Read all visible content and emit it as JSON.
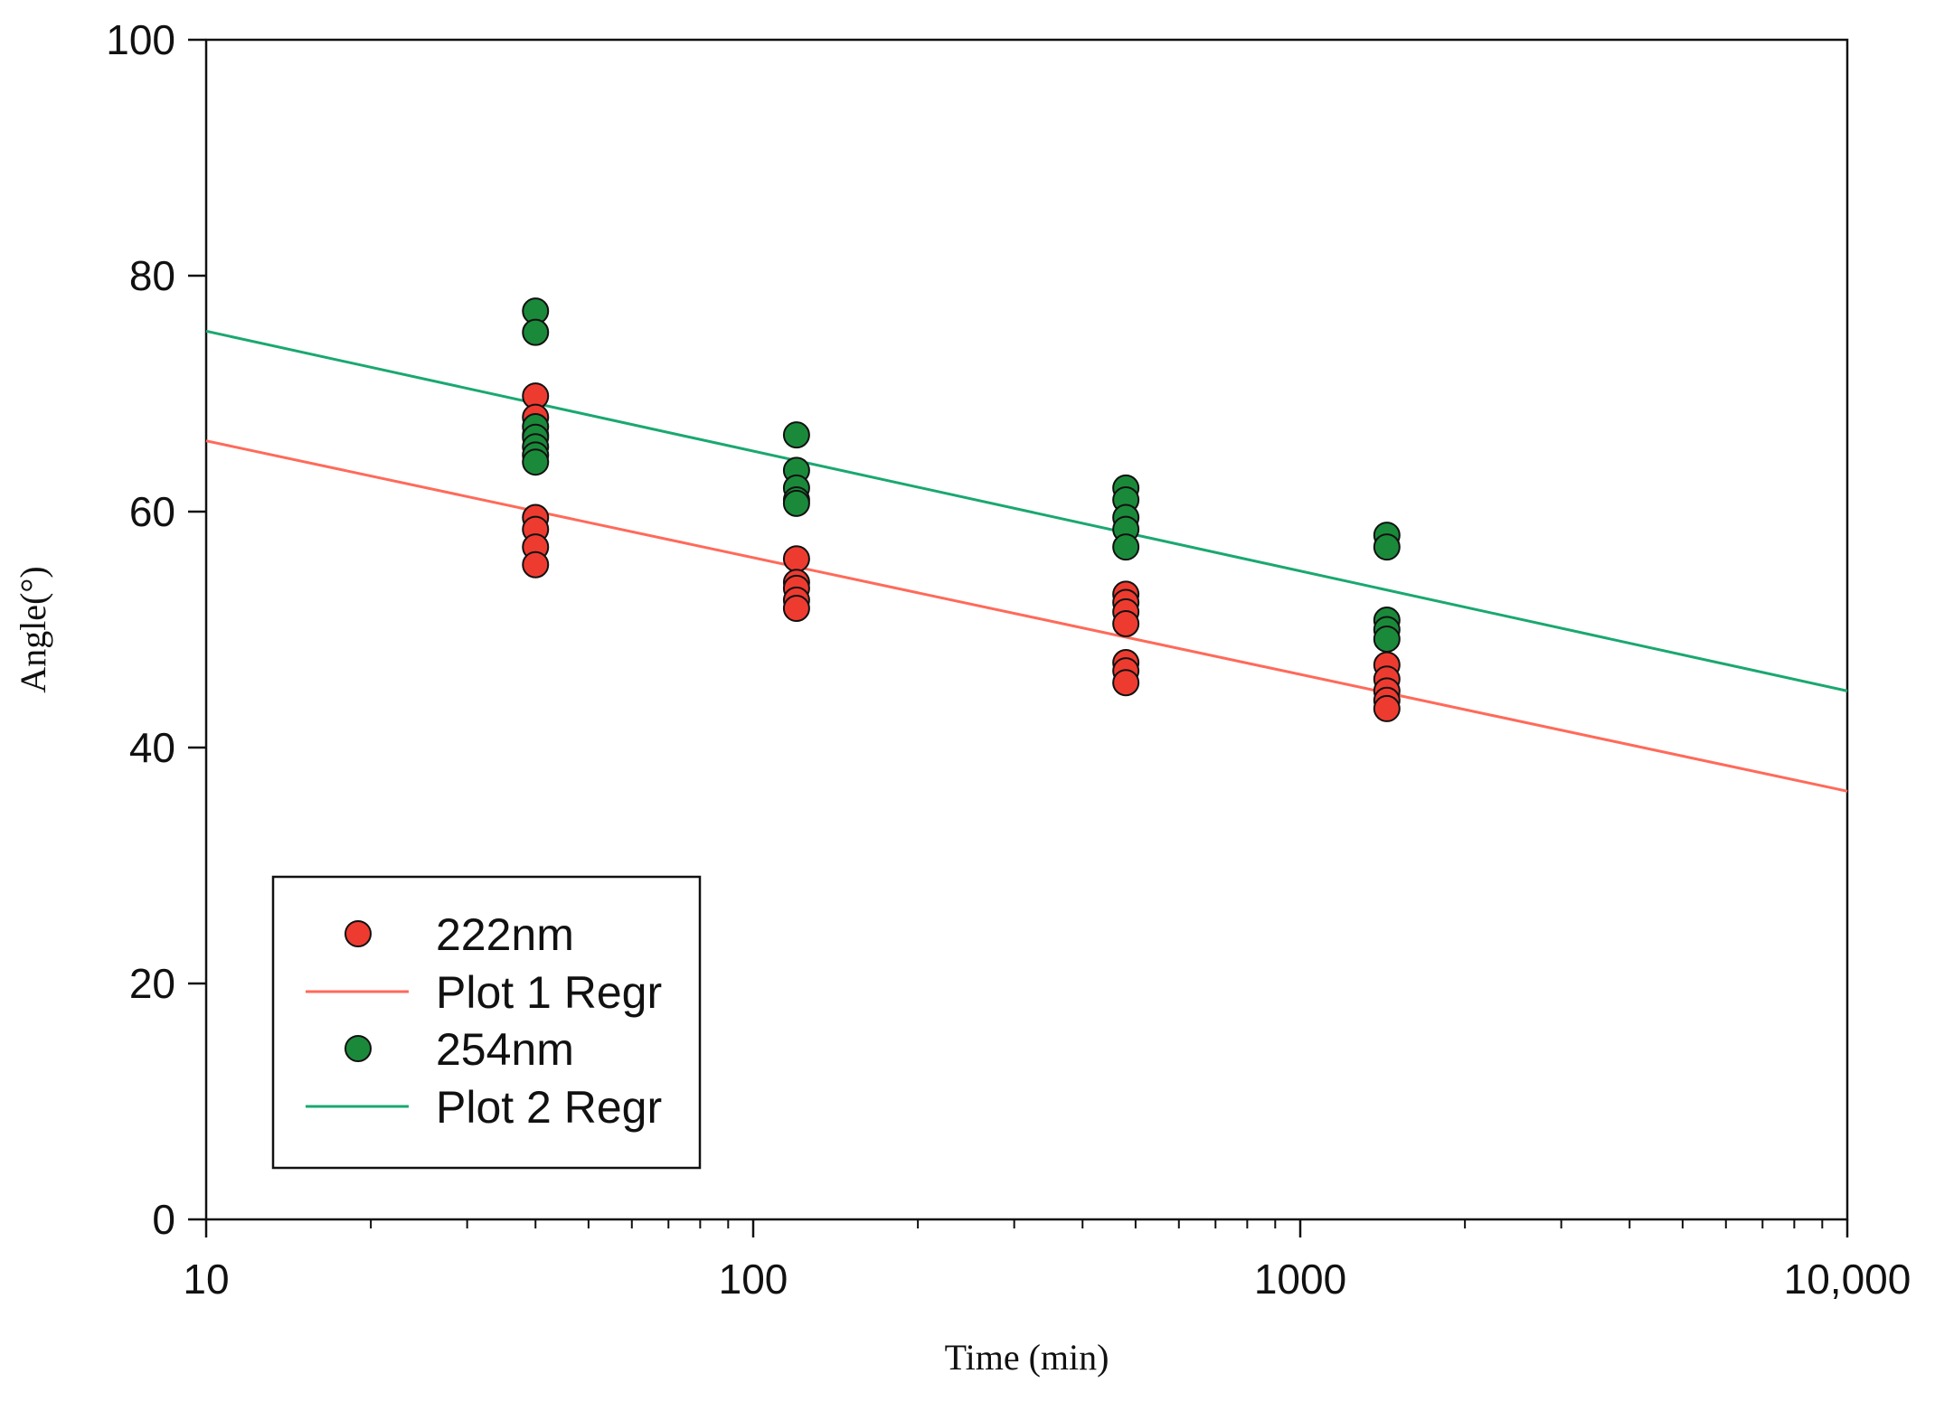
{
  "chart_data": {
    "type": "scatter",
    "xlabel": "Time (min)",
    "ylabel": "Angle(°)",
    "x_scale": "log",
    "xlim": [
      10,
      10000
    ],
    "ylim": [
      0,
      100
    ],
    "x_ticks": [
      {
        "value": 10,
        "label": "10"
      },
      {
        "value": 100,
        "label": "100"
      },
      {
        "value": 1000,
        "label": "1000"
      },
      {
        "value": 10000,
        "label": "10,000"
      }
    ],
    "y_ticks": [
      {
        "value": 0,
        "label": "0"
      },
      {
        "value": 20,
        "label": "20"
      },
      {
        "value": 40,
        "label": "40"
      },
      {
        "value": 60,
        "label": "60"
      },
      {
        "value": 80,
        "label": "80"
      },
      {
        "value": 100,
        "label": "100"
      }
    ],
    "grid": false,
    "legend_position": "bottom-left",
    "series": [
      {
        "name": "222nm",
        "kind": "scatter",
        "color": "#ee3b30",
        "points": [
          {
            "x": 40,
            "y": 69.8
          },
          {
            "x": 40,
            "y": 68.0
          },
          {
            "x": 40,
            "y": 66.5
          },
          {
            "x": 40,
            "y": 59.5
          },
          {
            "x": 40,
            "y": 58.5
          },
          {
            "x": 40,
            "y": 57.0
          },
          {
            "x": 40,
            "y": 55.5
          },
          {
            "x": 120,
            "y": 56.0
          },
          {
            "x": 120,
            "y": 54.0
          },
          {
            "x": 120,
            "y": 53.5
          },
          {
            "x": 120,
            "y": 52.5
          },
          {
            "x": 120,
            "y": 51.8
          },
          {
            "x": 480,
            "y": 53.0
          },
          {
            "x": 480,
            "y": 52.3
          },
          {
            "x": 480,
            "y": 51.5
          },
          {
            "x": 480,
            "y": 50.5
          },
          {
            "x": 480,
            "y": 47.2
          },
          {
            "x": 480,
            "y": 46.5
          },
          {
            "x": 480,
            "y": 45.5
          },
          {
            "x": 1440,
            "y": 47.0
          },
          {
            "x": 1440,
            "y": 45.8
          },
          {
            "x": 1440,
            "y": 44.8
          },
          {
            "x": 1440,
            "y": 44.0
          },
          {
            "x": 1440,
            "y": 43.3
          }
        ]
      },
      {
        "name": "Plot 1 Regr",
        "kind": "line",
        "color": "#ff6a5a",
        "points": [
          {
            "x": 10,
            "y": 66.0
          },
          {
            "x": 10000,
            "y": 36.3
          }
        ]
      },
      {
        "name": "254nm",
        "kind": "scatter",
        "color": "#1a8a3a",
        "points": [
          {
            "x": 40,
            "y": 77.0
          },
          {
            "x": 40,
            "y": 75.2
          },
          {
            "x": 40,
            "y": 67.2
          },
          {
            "x": 40,
            "y": 66.3
          },
          {
            "x": 40,
            "y": 65.5
          },
          {
            "x": 40,
            "y": 64.8
          },
          {
            "x": 40,
            "y": 64.2
          },
          {
            "x": 120,
            "y": 66.5
          },
          {
            "x": 120,
            "y": 63.5
          },
          {
            "x": 120,
            "y": 62.0
          },
          {
            "x": 120,
            "y": 61.0
          },
          {
            "x": 120,
            "y": 60.7
          },
          {
            "x": 480,
            "y": 62.0
          },
          {
            "x": 480,
            "y": 61.0
          },
          {
            "x": 480,
            "y": 59.5
          },
          {
            "x": 480,
            "y": 58.5
          },
          {
            "x": 480,
            "y": 57.0
          },
          {
            "x": 1440,
            "y": 58.0
          },
          {
            "x": 1440,
            "y": 57.0
          },
          {
            "x": 1440,
            "y": 50.8
          },
          {
            "x": 1440,
            "y": 50.0
          },
          {
            "x": 1440,
            "y": 49.2
          }
        ]
      },
      {
        "name": "Plot 2 Regr",
        "kind": "line",
        "color": "#1aa870",
        "points": [
          {
            "x": 10,
            "y": 75.3
          },
          {
            "x": 10000,
            "y": 44.8
          }
        ]
      }
    ]
  }
}
